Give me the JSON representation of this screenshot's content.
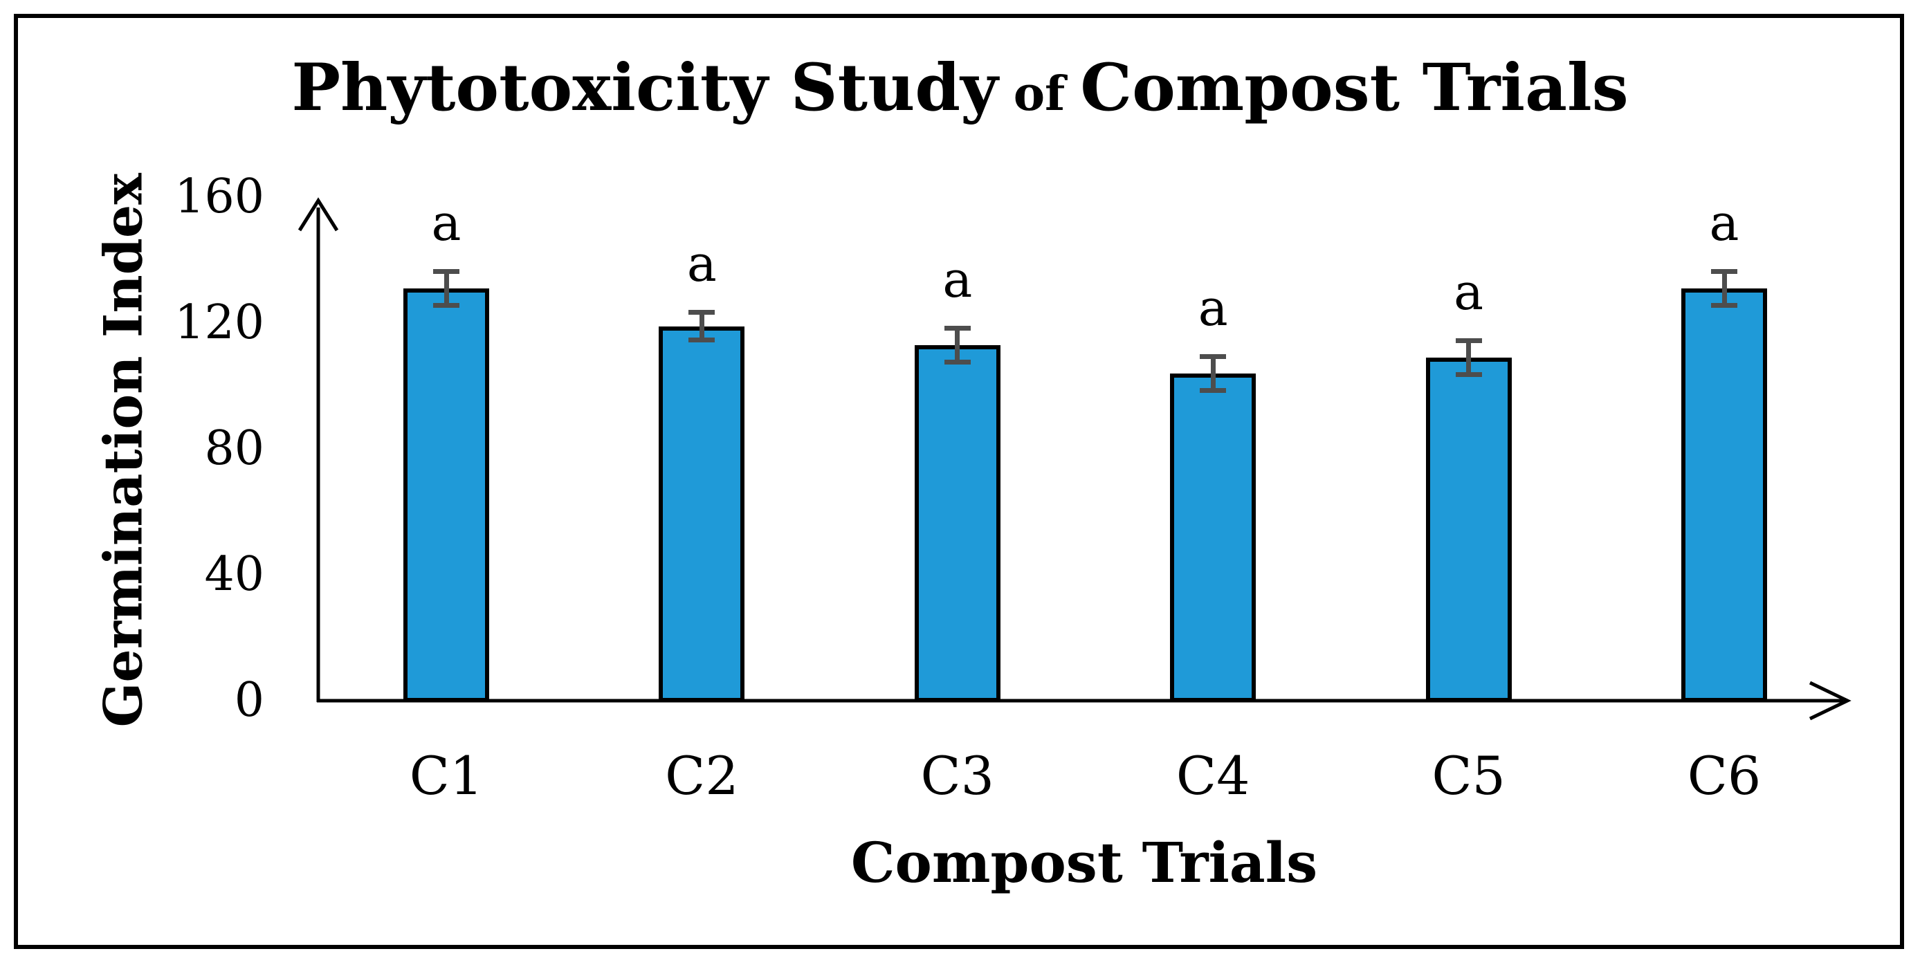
{
  "title": {
    "part1": "Phytotoxicity Study",
    "part2": "of",
    "part3": "Compost Trials"
  },
  "chart_data": {
    "type": "bar",
    "title": "Phytotoxicity Study of Compost Trials",
    "xlabel": "Compost Trials",
    "ylabel": "Germination Index",
    "categories": [
      "C1",
      "C2",
      "C3",
      "C4",
      "C5",
      "C6"
    ],
    "values": [
      131,
      119,
      113,
      104,
      109,
      131
    ],
    "errors": [
      5,
      4,
      5,
      5,
      5,
      5
    ],
    "sig_labels": [
      "a",
      "a",
      "a",
      "a",
      "a",
      "a"
    ],
    "yticks": [
      0,
      40,
      80,
      120,
      160
    ],
    "ylim": [
      0,
      160
    ],
    "grid": false,
    "legend": false,
    "bar_color": "#1f9ad8",
    "bar_border_color": "#000000",
    "error_bar_color": "#4d4d4d",
    "axis_color": "#000000"
  }
}
